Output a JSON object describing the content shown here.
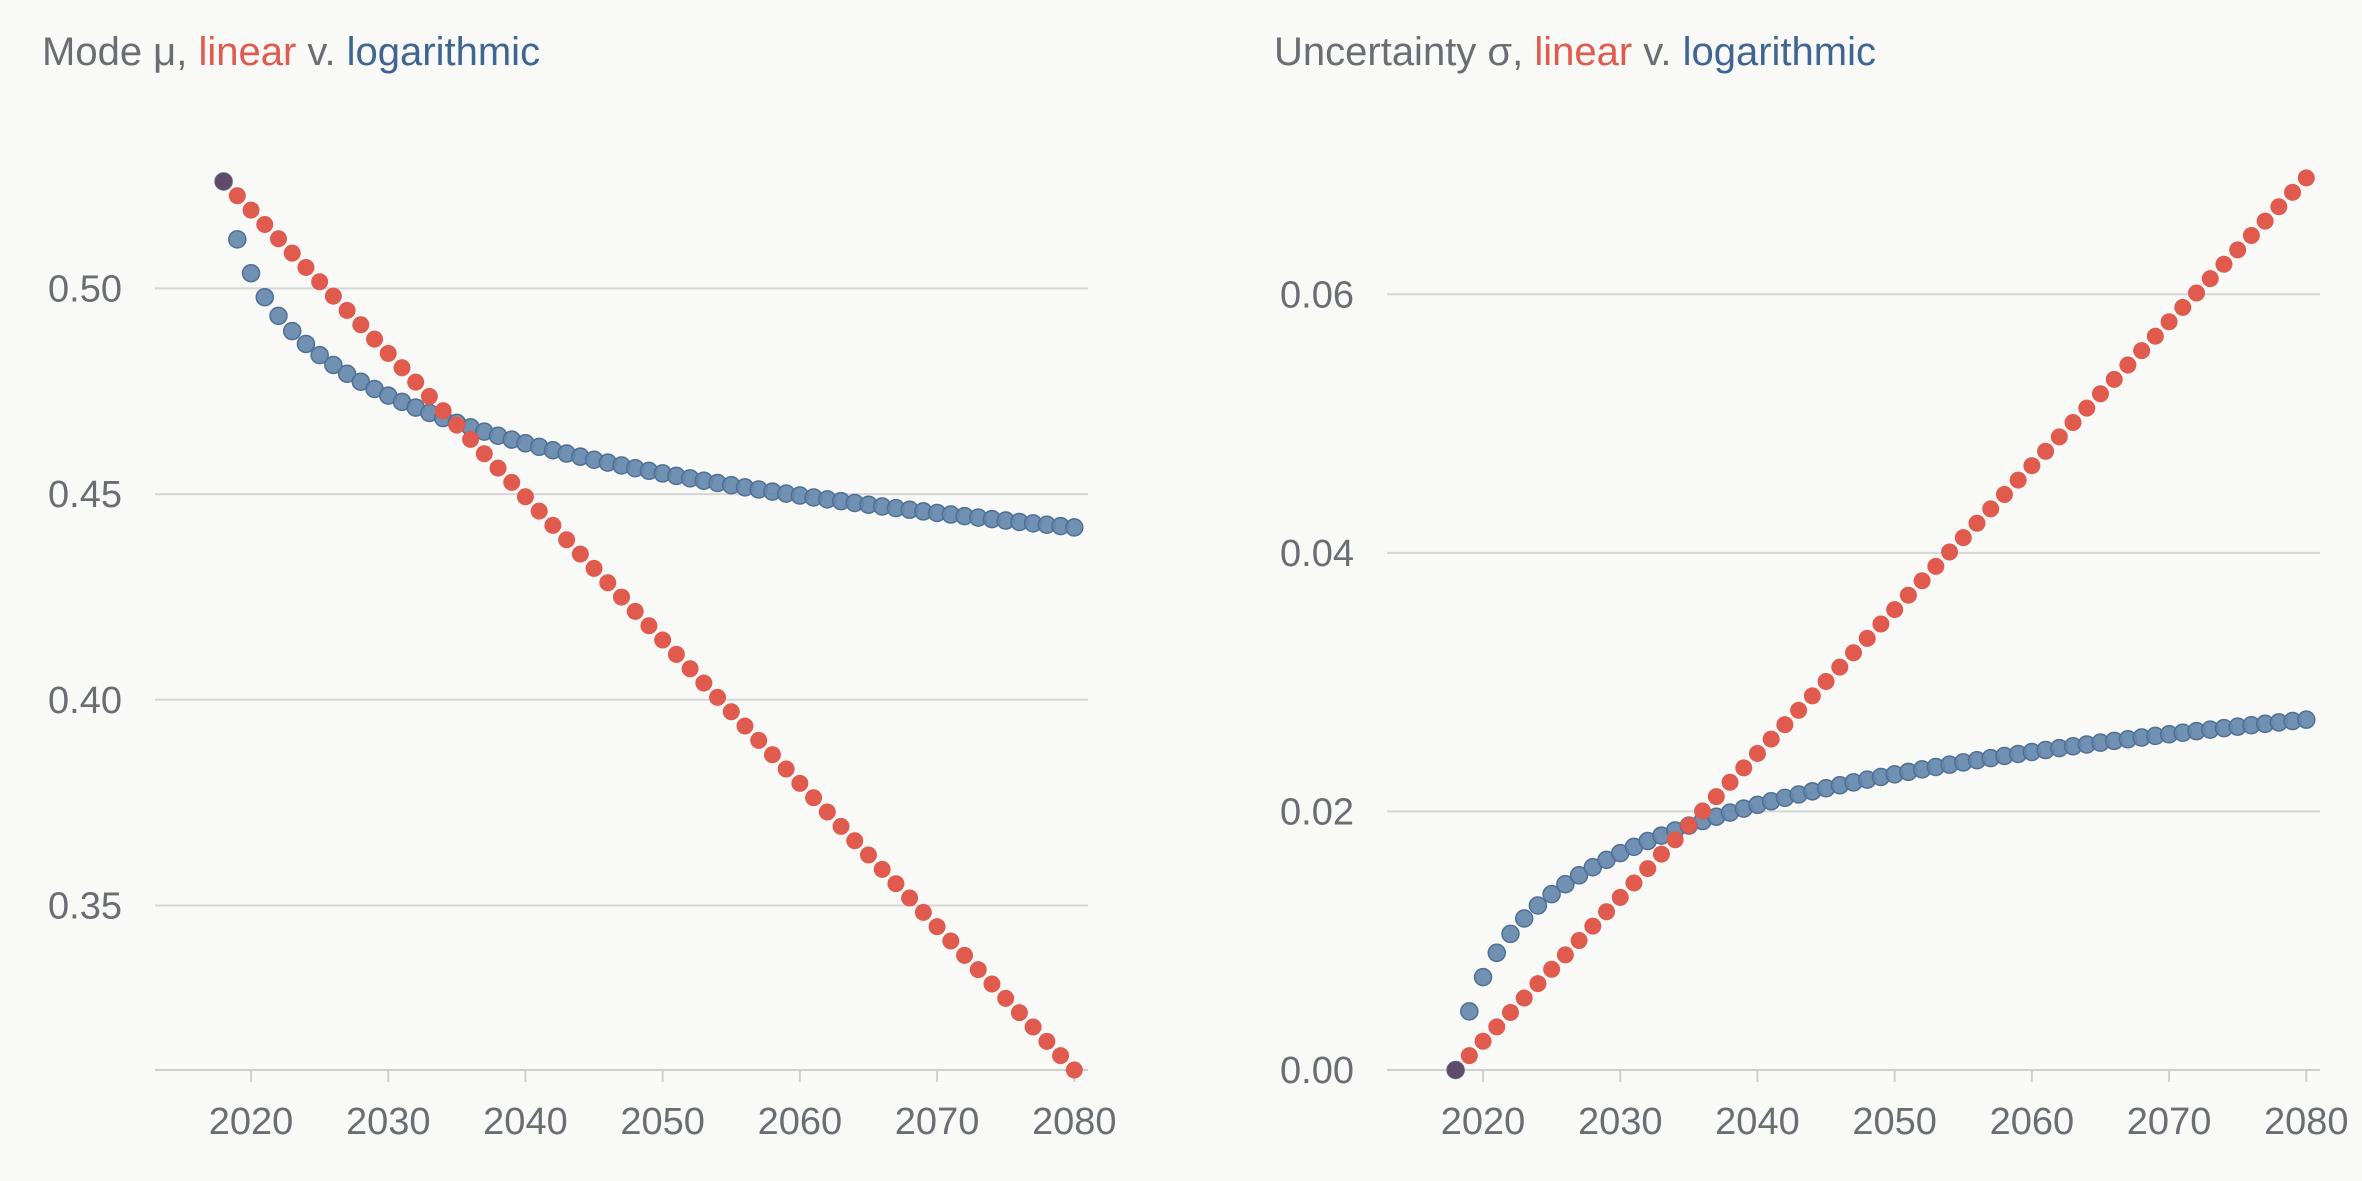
{
  "chart_data": [
    {
      "type": "scatter",
      "title": {
        "prefix": "Mode μ, ",
        "linear": "linear",
        "sep": " v. ",
        "logarithmic": "logarithmic"
      },
      "xlabel": "",
      "ylabel": "",
      "x_range": [
        2018,
        2080
      ],
      "xlim": [
        2013,
        2081
      ],
      "ylim": [
        0.31,
        0.53
      ],
      "xticks": [
        "2020",
        "2030",
        "2040",
        "2050",
        "2060",
        "2070",
        "2080"
      ],
      "yticks": [
        "0.35",
        "0.40",
        "0.45",
        "0.50"
      ],
      "series": [
        {
          "name": "linear",
          "color": "#e05a4d",
          "model": "linear",
          "start": 0.526,
          "end": 0.31
        },
        {
          "name": "logarithmic",
          "color": "#6588ad",
          "model": "log",
          "start": 0.526,
          "coef": -0.0203
        }
      ],
      "grid": true
    },
    {
      "type": "scatter",
      "title": {
        "prefix": "Uncertainty σ, ",
        "linear": "linear",
        "sep": " v. ",
        "logarithmic": "logarithmic"
      },
      "xlabel": "",
      "ylabel": "",
      "x_range": [
        2018,
        2080
      ],
      "xlim": [
        2013,
        2081
      ],
      "ylim": [
        0,
        0.07
      ],
      "xticks": [
        "2020",
        "2030",
        "2040",
        "2050",
        "2060",
        "2070",
        "2080"
      ],
      "yticks": [
        "0.00",
        "0.02",
        "0.04",
        "0.06"
      ],
      "series": [
        {
          "name": "linear",
          "color": "#e05a4d",
          "model": "linear",
          "start": 0.0,
          "end": 0.069
        },
        {
          "name": "logarithmic",
          "color": "#6588ad",
          "model": "log",
          "start": 0.0,
          "coef": 0.00654
        }
      ],
      "grid": true
    }
  ]
}
